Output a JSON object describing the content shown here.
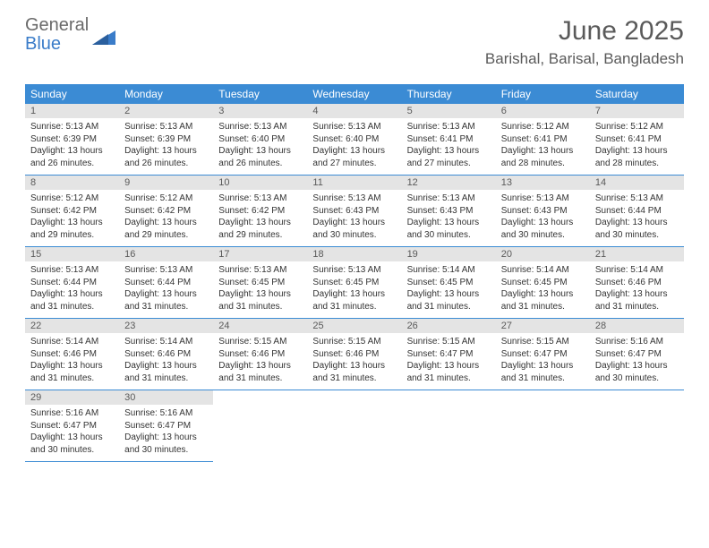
{
  "logo": {
    "text1": "General",
    "text2": "Blue"
  },
  "title": "June 2025",
  "location": "Barishal, Barisal, Bangladesh",
  "colors": {
    "header_bg": "#3b8bd4",
    "header_text": "#ffffff",
    "daynum_bg": "#e4e4e4",
    "text": "#333333",
    "title_text": "#5a5a5a",
    "border": "#3b8bd4"
  },
  "weekdays": [
    "Sunday",
    "Monday",
    "Tuesday",
    "Wednesday",
    "Thursday",
    "Friday",
    "Saturday"
  ],
  "days": [
    {
      "n": "1",
      "sunrise": "5:13 AM",
      "sunset": "6:39 PM",
      "daylight": "13 hours and 26 minutes."
    },
    {
      "n": "2",
      "sunrise": "5:13 AM",
      "sunset": "6:39 PM",
      "daylight": "13 hours and 26 minutes."
    },
    {
      "n": "3",
      "sunrise": "5:13 AM",
      "sunset": "6:40 PM",
      "daylight": "13 hours and 26 minutes."
    },
    {
      "n": "4",
      "sunrise": "5:13 AM",
      "sunset": "6:40 PM",
      "daylight": "13 hours and 27 minutes."
    },
    {
      "n": "5",
      "sunrise": "5:13 AM",
      "sunset": "6:41 PM",
      "daylight": "13 hours and 27 minutes."
    },
    {
      "n": "6",
      "sunrise": "5:12 AM",
      "sunset": "6:41 PM",
      "daylight": "13 hours and 28 minutes."
    },
    {
      "n": "7",
      "sunrise": "5:12 AM",
      "sunset": "6:41 PM",
      "daylight": "13 hours and 28 minutes."
    },
    {
      "n": "8",
      "sunrise": "5:12 AM",
      "sunset": "6:42 PM",
      "daylight": "13 hours and 29 minutes."
    },
    {
      "n": "9",
      "sunrise": "5:12 AM",
      "sunset": "6:42 PM",
      "daylight": "13 hours and 29 minutes."
    },
    {
      "n": "10",
      "sunrise": "5:13 AM",
      "sunset": "6:42 PM",
      "daylight": "13 hours and 29 minutes."
    },
    {
      "n": "11",
      "sunrise": "5:13 AM",
      "sunset": "6:43 PM",
      "daylight": "13 hours and 30 minutes."
    },
    {
      "n": "12",
      "sunrise": "5:13 AM",
      "sunset": "6:43 PM",
      "daylight": "13 hours and 30 minutes."
    },
    {
      "n": "13",
      "sunrise": "5:13 AM",
      "sunset": "6:43 PM",
      "daylight": "13 hours and 30 minutes."
    },
    {
      "n": "14",
      "sunrise": "5:13 AM",
      "sunset": "6:44 PM",
      "daylight": "13 hours and 30 minutes."
    },
    {
      "n": "15",
      "sunrise": "5:13 AM",
      "sunset": "6:44 PM",
      "daylight": "13 hours and 31 minutes."
    },
    {
      "n": "16",
      "sunrise": "5:13 AM",
      "sunset": "6:44 PM",
      "daylight": "13 hours and 31 minutes."
    },
    {
      "n": "17",
      "sunrise": "5:13 AM",
      "sunset": "6:45 PM",
      "daylight": "13 hours and 31 minutes."
    },
    {
      "n": "18",
      "sunrise": "5:13 AM",
      "sunset": "6:45 PM",
      "daylight": "13 hours and 31 minutes."
    },
    {
      "n": "19",
      "sunrise": "5:14 AM",
      "sunset": "6:45 PM",
      "daylight": "13 hours and 31 minutes."
    },
    {
      "n": "20",
      "sunrise": "5:14 AM",
      "sunset": "6:45 PM",
      "daylight": "13 hours and 31 minutes."
    },
    {
      "n": "21",
      "sunrise": "5:14 AM",
      "sunset": "6:46 PM",
      "daylight": "13 hours and 31 minutes."
    },
    {
      "n": "22",
      "sunrise": "5:14 AM",
      "sunset": "6:46 PM",
      "daylight": "13 hours and 31 minutes."
    },
    {
      "n": "23",
      "sunrise": "5:14 AM",
      "sunset": "6:46 PM",
      "daylight": "13 hours and 31 minutes."
    },
    {
      "n": "24",
      "sunrise": "5:15 AM",
      "sunset": "6:46 PM",
      "daylight": "13 hours and 31 minutes."
    },
    {
      "n": "25",
      "sunrise": "5:15 AM",
      "sunset": "6:46 PM",
      "daylight": "13 hours and 31 minutes."
    },
    {
      "n": "26",
      "sunrise": "5:15 AM",
      "sunset": "6:47 PM",
      "daylight": "13 hours and 31 minutes."
    },
    {
      "n": "27",
      "sunrise": "5:15 AM",
      "sunset": "6:47 PM",
      "daylight": "13 hours and 31 minutes."
    },
    {
      "n": "28",
      "sunrise": "5:16 AM",
      "sunset": "6:47 PM",
      "daylight": "13 hours and 30 minutes."
    },
    {
      "n": "29",
      "sunrise": "5:16 AM",
      "sunset": "6:47 PM",
      "daylight": "13 hours and 30 minutes."
    },
    {
      "n": "30",
      "sunrise": "5:16 AM",
      "sunset": "6:47 PM",
      "daylight": "13 hours and 30 minutes."
    }
  ],
  "labels": {
    "sunrise": "Sunrise:",
    "sunset": "Sunset:",
    "daylight": "Daylight:"
  },
  "grid": {
    "start_weekday": 0,
    "total_cells": 35
  }
}
